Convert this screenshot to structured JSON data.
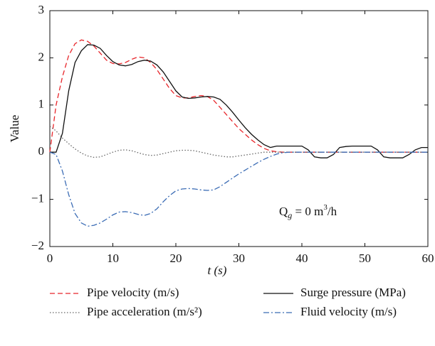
{
  "chart_data": {
    "type": "line",
    "xlabel": "t (s)",
    "ylabel": "Value",
    "annotation": [
      "Q",
      "g",
      " = 0 m",
      "3",
      "/h"
    ],
    "x": [
      0,
      1,
      2,
      3,
      4,
      5,
      6,
      7,
      8,
      9,
      10,
      11,
      12,
      13,
      14,
      15,
      16,
      17,
      18,
      19,
      20,
      21,
      22,
      23,
      24,
      25,
      26,
      27,
      28,
      29,
      30,
      31,
      32,
      33,
      34,
      35,
      36,
      37,
      38,
      39,
      40,
      41,
      42,
      43,
      44,
      45,
      46,
      47,
      48,
      49,
      50,
      51,
      52,
      53,
      54,
      55,
      56,
      57,
      58,
      59,
      60
    ],
    "xlim": [
      0,
      60
    ],
    "xticks": [
      0,
      10,
      20,
      30,
      40,
      50,
      60
    ],
    "ylim": [
      -2,
      3
    ],
    "yticks": [
      {
        "value": -2,
        "label": "−2"
      },
      {
        "value": -1,
        "label": "−1"
      },
      0,
      1,
      2,
      3
    ],
    "series": [
      {
        "name": "Pipe velocity (m/s)",
        "color": "#e8262b",
        "dash": "7,4",
        "values": [
          0,
          1.0,
          1.6,
          2.05,
          2.3,
          2.38,
          2.35,
          2.25,
          2.1,
          1.95,
          1.88,
          1.87,
          1.9,
          1.97,
          2.02,
          2.0,
          1.9,
          1.75,
          1.55,
          1.35,
          1.2,
          1.15,
          1.15,
          1.18,
          1.2,
          1.18,
          1.1,
          0.95,
          0.8,
          0.65,
          0.5,
          0.38,
          0.26,
          0.16,
          0.08,
          0.03,
          0.01,
          0,
          0,
          0,
          0,
          0,
          0,
          0,
          0,
          0,
          0,
          0,
          0,
          0,
          0,
          0,
          0,
          0,
          0,
          0,
          0,
          0,
          0,
          0,
          0
        ]
      },
      {
        "name": "Surge pressure (MPa)",
        "color": "#111111",
        "dash": "none",
        "values": [
          0,
          0,
          0.4,
          1.3,
          1.9,
          2.15,
          2.28,
          2.27,
          2.2,
          2.05,
          1.92,
          1.85,
          1.83,
          1.86,
          1.92,
          1.95,
          1.93,
          1.85,
          1.7,
          1.5,
          1.3,
          1.17,
          1.14,
          1.15,
          1.17,
          1.18,
          1.17,
          1.12,
          1.0,
          0.85,
          0.68,
          0.52,
          0.38,
          0.26,
          0.16,
          0.1,
          0.13,
          0.13,
          0.13,
          0.13,
          0.13,
          0.05,
          -0.1,
          -0.12,
          -0.12,
          -0.05,
          0.1,
          0.12,
          0.13,
          0.13,
          0.13,
          0.13,
          0.05,
          -0.1,
          -0.12,
          -0.12,
          -0.12,
          -0.05,
          0.05,
          0.1,
          0.1
        ]
      },
      {
        "name": "Pipe acceleration (m/s²)",
        "color": "#666666",
        "dash": "1.5,2.5",
        "values": [
          0.55,
          0.45,
          0.3,
          0.18,
          0.07,
          -0.02,
          -0.08,
          -0.11,
          -0.1,
          -0.05,
          0,
          0.04,
          0.05,
          0.03,
          -0.01,
          -0.05,
          -0.07,
          -0.06,
          -0.03,
          0,
          0.03,
          0.04,
          0.04,
          0.03,
          0,
          -0.03,
          -0.06,
          -0.08,
          -0.1,
          -0.1,
          -0.08,
          -0.06,
          -0.04,
          -0.02,
          0,
          0,
          0,
          0,
          0,
          0,
          0,
          0,
          0,
          0,
          0,
          0,
          0,
          0,
          0,
          0,
          0,
          0,
          0,
          0,
          0,
          0,
          0,
          0,
          0,
          0,
          0
        ]
      },
      {
        "name": "Fluid velocity (m/s)",
        "color": "#3b6cb5",
        "dash": "8,3,2,3",
        "values": [
          0,
          -0.05,
          -0.4,
          -0.9,
          -1.3,
          -1.5,
          -1.57,
          -1.55,
          -1.5,
          -1.42,
          -1.33,
          -1.27,
          -1.26,
          -1.28,
          -1.32,
          -1.34,
          -1.3,
          -1.2,
          -1.05,
          -0.92,
          -0.82,
          -0.78,
          -0.77,
          -0.78,
          -0.8,
          -0.81,
          -0.8,
          -0.73,
          -0.64,
          -0.55,
          -0.46,
          -0.38,
          -0.3,
          -0.22,
          -0.15,
          -0.09,
          -0.04,
          -0.01,
          0,
          0,
          0,
          0,
          0,
          0,
          0,
          0,
          0,
          0,
          0,
          0,
          0,
          0,
          0,
          0,
          0,
          0,
          0,
          0,
          0,
          0,
          0
        ]
      }
    ]
  }
}
